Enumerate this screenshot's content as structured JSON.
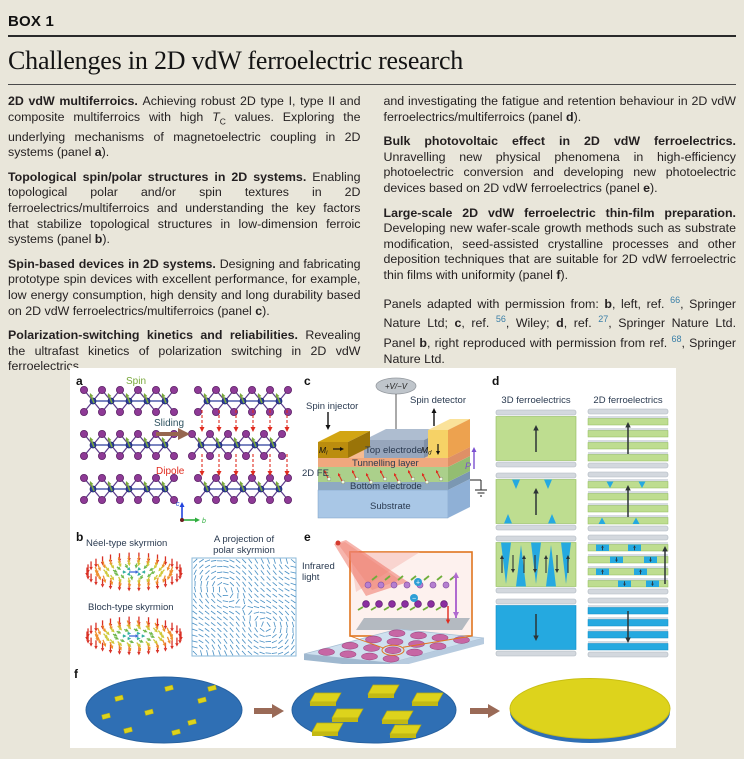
{
  "box": {
    "label": "BOX 1",
    "title": "Challenges in 2D vdW ferroelectric research"
  },
  "columns": {
    "left": [
      [
        {
          "t": "2D vdW multiferroics. ",
          "s": "b"
        },
        {
          "t": "Achieving robust 2D type I, type II and composite multiferroics with high ",
          "s": ""
        },
        {
          "t": "T",
          "s": "i"
        },
        {
          "t": "C",
          "s": "sub"
        },
        {
          "t": " values. Exploring the underlying mechanisms of magnetoelectric coupling in 2D systems (panel ",
          "s": ""
        },
        {
          "t": "a",
          "s": "b"
        },
        {
          "t": ").",
          "s": ""
        }
      ],
      [
        {
          "t": "Topological spin/polar structures in 2D systems. ",
          "s": "b"
        },
        {
          "t": "Enabling topological polar and/or spin textures in 2D ferroelectrics/multiferroics and understanding the key factors that stabilize topological structures in low-dimension ferroic systems (panel ",
          "s": ""
        },
        {
          "t": "b",
          "s": "b"
        },
        {
          "t": ").",
          "s": ""
        }
      ],
      [
        {
          "t": "Spin-based devices in 2D systems. ",
          "s": "b"
        },
        {
          "t": "Designing and fabricating prototype spin devices with excellent performance, for example, low energy consumption, high density and long durability based on 2D vdW ferroelectrics/multiferroics (panel ",
          "s": ""
        },
        {
          "t": "c",
          "s": "b"
        },
        {
          "t": ").",
          "s": ""
        }
      ],
      [
        {
          "t": "Polarization-switching kinetics and reliabilities. ",
          "s": "b"
        },
        {
          "t": "Revealing the ultrafast kinetics of polarization switching in 2D vdW ferroelectrics",
          "s": ""
        }
      ]
    ],
    "right": [
      [
        {
          "t": "and investigating the fatigue and retention behaviour in 2D vdW ferroelectrics/multiferroics (panel ",
          "s": ""
        },
        {
          "t": "d",
          "s": "b"
        },
        {
          "t": ").",
          "s": ""
        }
      ],
      [
        {
          "t": "Bulk photovoltaic effect in 2D vdW ferroelectrics. ",
          "s": "b"
        },
        {
          "t": "Unravelling new physical phenomena in high-efficiency photoelectric conversion and developing new photoelectric devices based on 2D vdW ferroelectrics (panel ",
          "s": ""
        },
        {
          "t": "e",
          "s": "b"
        },
        {
          "t": ").",
          "s": ""
        }
      ],
      [
        {
          "t": "Large-scale 2D vdW ferroelectric thin-film preparation. ",
          "s": "b"
        },
        {
          "t": "Developing new wafer-scale growth methods such as substrate modification, seed-assisted crystalline processes and other deposition techniques that are suitable for 2D vdW ferroelectric thin films with uniformity (panel ",
          "s": ""
        },
        {
          "t": "f",
          "s": "b"
        },
        {
          "t": ").",
          "s": ""
        }
      ],
      [
        {
          "t": "Panels adapted with permission from: ",
          "s": ""
        },
        {
          "t": "b",
          "s": "b"
        },
        {
          "t": ", left, ref. ",
          "s": ""
        },
        {
          "t": "66",
          "s": "ref"
        },
        {
          "t": ", Springer Nature Ltd; ",
          "s": ""
        },
        {
          "t": "c",
          "s": "b"
        },
        {
          "t": ", ref. ",
          "s": ""
        },
        {
          "t": "56",
          "s": "ref"
        },
        {
          "t": ", Wiley; ",
          "s": ""
        },
        {
          "t": "d",
          "s": "b"
        },
        {
          "t": ", ref. ",
          "s": ""
        },
        {
          "t": "27",
          "s": "ref"
        },
        {
          "t": ", Springer Nature Ltd. Panel ",
          "s": ""
        },
        {
          "t": "b",
          "s": "b"
        },
        {
          "t": ", right reproduced with permission from ref. ",
          "s": ""
        },
        {
          "t": "68",
          "s": "ref"
        },
        {
          "t": ", Springer Nature Ltd.",
          "s": ""
        }
      ]
    ]
  },
  "figure": {
    "panels": {
      "a": {
        "letter": "a",
        "spin": "Spin",
        "sliding": "Sliding",
        "dipole": "Dipole",
        "axis_c": "c",
        "axis_b": "b"
      },
      "b": {
        "letter": "b",
        "neel": "Néel-type skyrmion",
        "bloch": "Bloch-type skyrmion",
        "projection_line1": "A projection of",
        "projection_line2": "polar skyrmion"
      },
      "c": {
        "letter": "c",
        "voltage": "+V/−V",
        "spin_injector": "Spin injector",
        "spin_detector": "Spin detector",
        "top_electrode": "Top electrode",
        "tunnelling_layer": "Tunnelling layer",
        "m_i": "M",
        "m_i_sub": "i",
        "m_d": "M",
        "m_d_sub": "d",
        "fe": "2D FE",
        "p": "P",
        "bottom_electrode": "Bottom electrode",
        "substrate": "Substrate"
      },
      "d": {
        "letter": "d",
        "col_3d": "3D ferroelectrics",
        "col_2d": "2D ferroelectrics"
      },
      "e": {
        "letter": "e",
        "infrared_line1": "Infrared",
        "infrared_line2": "light"
      },
      "f": {
        "letter": "f"
      }
    },
    "colors": {
      "page_bg": "#e9e6da",
      "figure_bg": "#ffffff",
      "text": "#231f20",
      "ref_link": "#3a7fa8",
      "spin_green": "#79a83c",
      "sliding_text": "#2f5360",
      "dipole_red": "#e02a1e",
      "atom_purple": "#8e3a96",
      "atom_blue": "#2c3c9c",
      "bond_purple": "#5a3a8a",
      "sliding_arrow_brown": "#96664f",
      "axis_c_blue": "#2244dd",
      "axis_b_green": "#2fae3e",
      "axis_origin": "#6b1d1d",
      "sk_red": "#d93025",
      "sk_orange": "#ef8f2e",
      "sk_yellow": "#cfc838",
      "sk_green": "#6fb84a",
      "sk_teal": "#35b0a0",
      "sk_blue": "#3f6ad8",
      "proj_blue": "#4a90c4",
      "proj_border": "#8bb8d8",
      "injector_gold": "#bb8d0e",
      "detector_yellow": "#f6d266",
      "top_electrode_gray": "#97a6bc",
      "tunnel_salmon": "#f0a87e",
      "fe_green": "#abd08b",
      "bottom_electrode_gray": "#8ea9c2",
      "substrate_blue": "#a9c7e6",
      "p_purple": "#7a4fd0",
      "voltage_gray": "#bfc5cb",
      "d_green": "#bedd90",
      "d_blue": "#25a9e0",
      "d_electrode": "#d3d8de",
      "d_arrow": "#2d3436",
      "inset_orange": "#e0751f",
      "beam_red": "#ea5a4a",
      "platform_blue": "#cfe0ef",
      "flake_pink": "#c75b9e",
      "atom_light_purple": "#b57fd0",
      "atom_dark_purple": "#8b2fa0",
      "charge_blue": "#2e9fd6",
      "wafer_blue": "#2f6fb4",
      "flake_yellow": "#ddd31c",
      "step_arrow_brown": "#9a6a57"
    }
  }
}
